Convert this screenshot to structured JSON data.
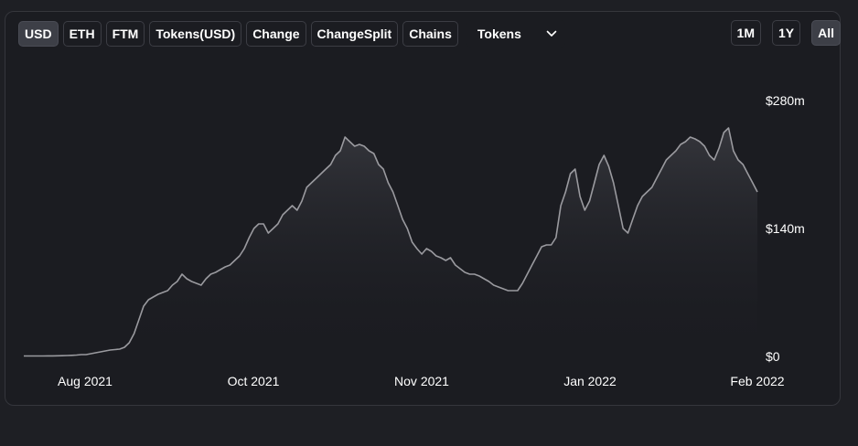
{
  "toolbar": {
    "denominations": [
      {
        "label": "USD",
        "active": true
      },
      {
        "label": "ETH",
        "active": false
      },
      {
        "label": "FTM",
        "active": false
      },
      {
        "label": "Tokens(USD)",
        "active": false
      },
      {
        "label": "Change",
        "active": false
      },
      {
        "label": "ChangeSplit",
        "active": false
      },
      {
        "label": "Chains",
        "active": false
      }
    ],
    "tokens_select": {
      "label": "Tokens",
      "icon": "chevron-down-icon"
    }
  },
  "range_buttons": [
    {
      "label": "1M",
      "active": false
    },
    {
      "label": "1Y",
      "active": false
    },
    {
      "label": "All",
      "active": true
    }
  ],
  "chart_data": {
    "type": "area",
    "title": "",
    "xlabel": "",
    "ylabel": "",
    "x_ticks": [
      "Aug 2021",
      "Oct 2021",
      "Nov 2021",
      "Jan 2022",
      "Feb 2022"
    ],
    "y_ticks": [
      "$0",
      "$140m",
      "$280m"
    ],
    "ylim": [
      0,
      280
    ],
    "y_unit": "$m",
    "grid": false,
    "legend": "none",
    "line_color": "#9a9a9f",
    "series": [
      {
        "values": [
          0.5,
          0.5,
          0.5,
          0.5,
          0.5,
          0.6,
          0.6,
          0.7,
          0.8,
          1,
          1.2,
          1.5,
          2,
          2,
          3,
          4,
          5,
          6,
          7,
          7.5,
          8,
          10,
          15,
          25,
          40,
          55,
          62,
          65,
          68,
          70,
          72,
          78,
          82,
          90,
          85,
          82,
          80,
          78,
          85,
          90,
          92,
          95,
          98,
          100,
          105,
          110,
          118,
          130,
          140,
          145,
          145,
          135,
          140,
          145,
          155,
          160,
          165,
          160,
          170,
          185,
          190,
          195,
          200,
          205,
          210,
          220,
          225,
          240,
          235,
          230,
          232,
          230,
          225,
          222,
          210,
          205,
          190,
          180,
          165,
          150,
          140,
          125,
          118,
          112,
          118,
          115,
          110,
          108,
          105,
          108,
          100,
          96,
          92,
          90,
          90,
          88,
          85,
          82,
          78,
          76,
          74,
          72,
          72,
          72,
          80,
          90,
          100,
          110,
          120,
          122,
          122,
          130,
          165,
          180,
          200,
          205,
          175,
          160,
          170,
          190,
          210,
          220,
          208,
          190,
          165,
          140,
          135,
          150,
          165,
          175,
          180,
          185,
          195,
          205,
          215,
          220,
          225,
          232,
          235,
          240,
          238,
          235,
          230,
          220,
          215,
          228,
          245,
          250,
          225,
          215,
          210,
          200,
          190,
          180
        ]
      }
    ]
  }
}
